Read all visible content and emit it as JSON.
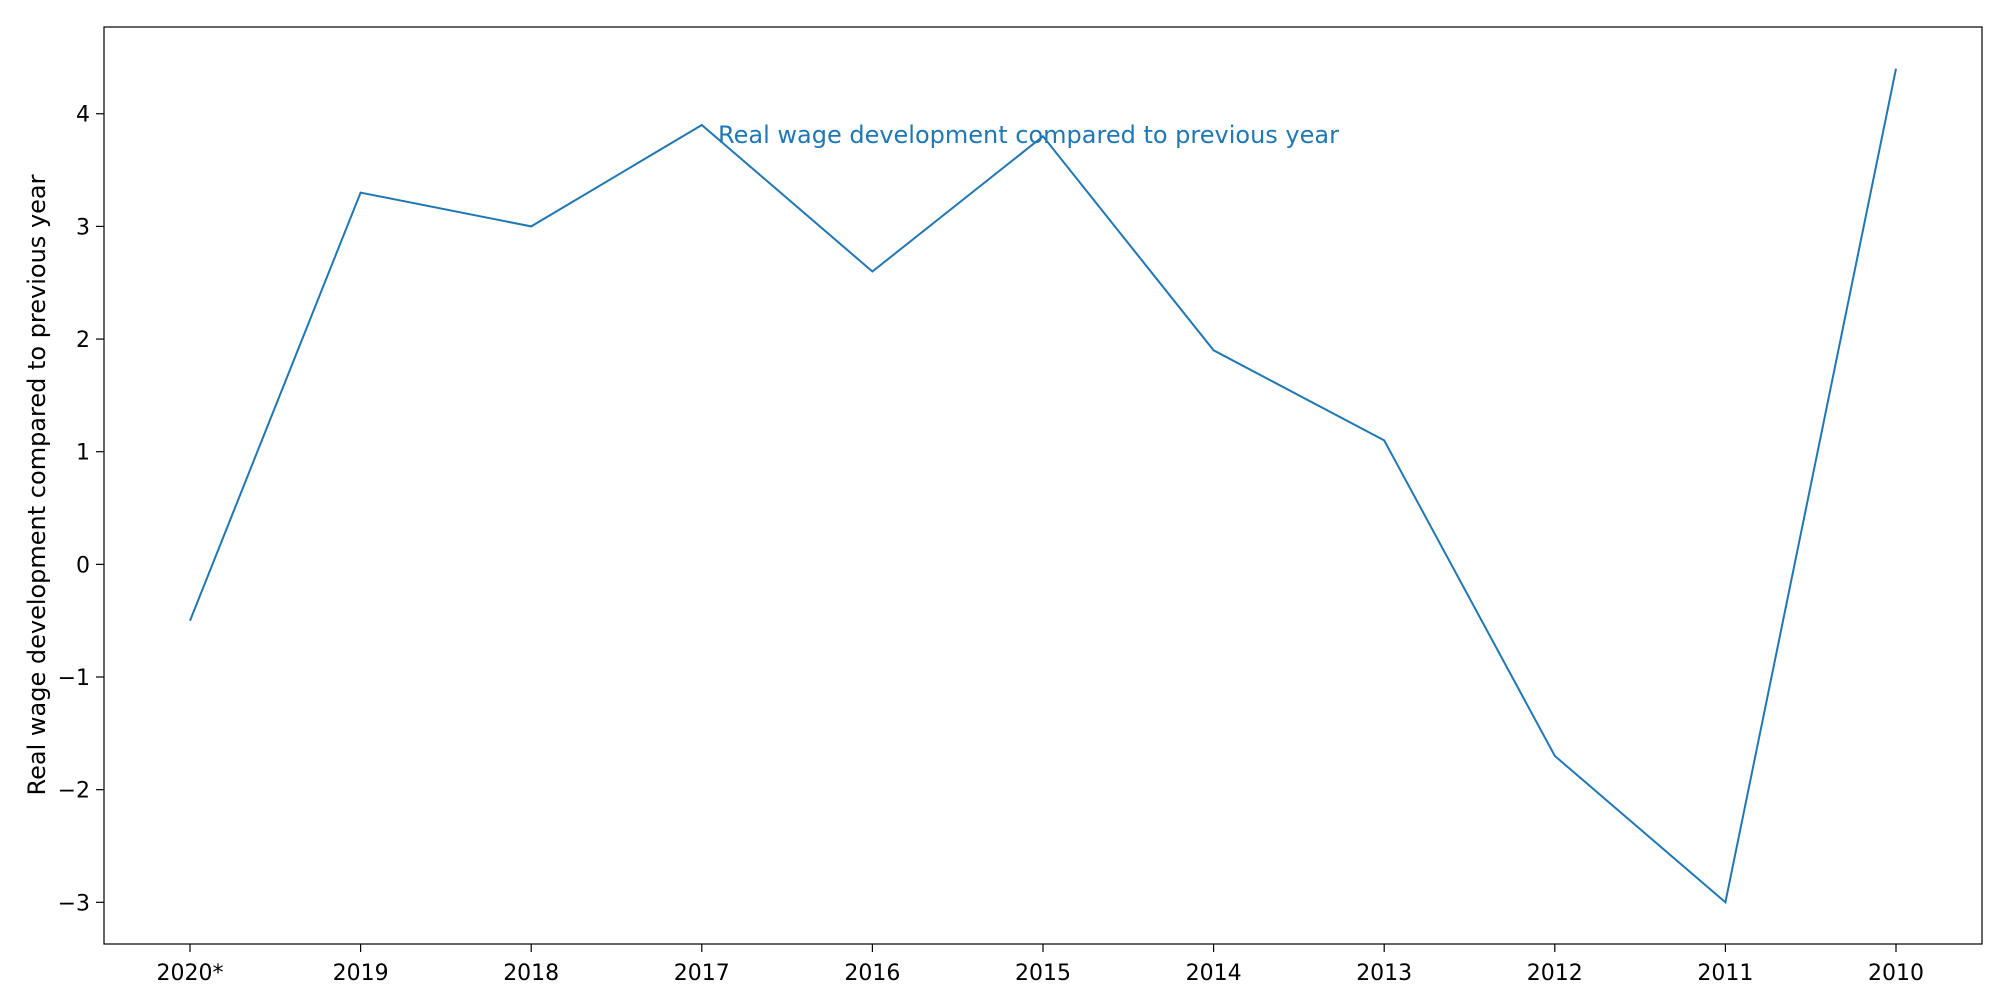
{
  "chart_data": {
    "type": "line",
    "title": "",
    "xlabel": "",
    "ylabel": "Real wage development compared to previous year",
    "categories": [
      "2020*",
      "2019",
      "2018",
      "2017",
      "2016",
      "2015",
      "2014",
      "2013",
      "2012",
      "2011",
      "2010"
    ],
    "series": [
      {
        "name": "Real wage development compared to previous year",
        "values": [
          -0.5,
          3.3,
          3.0,
          3.9,
          2.6,
          3.8,
          1.9,
          1.1,
          -1.7,
          -3.0,
          4.4
        ],
        "color": "#1f77b4"
      }
    ],
    "ylim": [
      -3.37,
      4.77
    ],
    "yticks": [
      -3,
      -2,
      -1,
      0,
      1,
      2,
      3,
      4
    ],
    "ytick_labels": [
      "−3",
      "−2",
      "−1",
      "0",
      "1",
      "2",
      "3",
      "4"
    ],
    "grid": false,
    "legend": "none",
    "annotation": {
      "text": "Real wage development compared to previous year",
      "color": "#1f77b4"
    }
  }
}
